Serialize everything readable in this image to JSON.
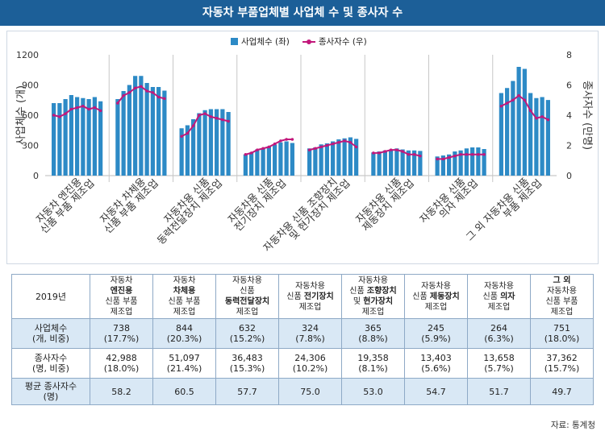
{
  "title": "자동차 부품업체별 사업체 수 및 종사자 수",
  "colors": {
    "bar": "#2d8ac6",
    "line": "#c2187b",
    "title_bg": "#1c5f98",
    "row_shade": "#d9e8f5"
  },
  "chart_data": {
    "type": "bar+line",
    "legend": [
      "사업체수 (좌)",
      "종사자수 (우)"
    ],
    "legend_position": "top",
    "y_left": {
      "label": "사업체수 (개)",
      "ticks": [
        "0",
        "300",
        "600",
        "900",
        "1200"
      ],
      "range": [
        0,
        1200
      ]
    },
    "y_right": {
      "label": "종사자수 (만명)",
      "ticks": [
        "0",
        "2",
        "4",
        "6",
        "8"
      ],
      "range": [
        0,
        8
      ]
    },
    "groups": [
      {
        "label_lines": [
          "자동차 엔진용",
          "신품 부품 제조업"
        ],
        "bars": [
          720,
          720,
          760,
          800,
          780,
          770,
          760,
          780,
          738
        ],
        "line": [
          4.0,
          3.9,
          4.1,
          4.4,
          4.5,
          4.6,
          4.4,
          4.5,
          4.3
        ]
      },
      {
        "label_lines": [
          "자동차 차체용",
          "신품 부품 제조업"
        ],
        "bars": [
          760,
          840,
          900,
          990,
          990,
          920,
          880,
          880,
          844
        ],
        "line": [
          4.8,
          5.3,
          5.5,
          5.8,
          5.9,
          5.6,
          5.5,
          5.2,
          5.1
        ]
      },
      {
        "label_lines": [
          "자동차용 신품",
          "동력전달장치 제조업"
        ],
        "bars": [
          470,
          500,
          560,
          620,
          650,
          660,
          660,
          660,
          632
        ],
        "line": [
          2.6,
          2.8,
          3.3,
          4.0,
          4.1,
          3.9,
          3.8,
          3.7,
          3.6
        ]
      },
      {
        "label_lines": [
          "자동차용 신품",
          "전기장치 제조업"
        ],
        "bars": [
          210,
          230,
          260,
          270,
          290,
          310,
          330,
          340,
          324
        ],
        "line": [
          1.4,
          1.5,
          1.7,
          1.8,
          1.9,
          2.1,
          2.3,
          2.4,
          2.4
        ]
      },
      {
        "label_lines": [
          "자동차용 신품 조향장치",
          "및 현가장치 제조업"
        ],
        "bars": [
          270,
          280,
          310,
          320,
          340,
          360,
          370,
          380,
          365
        ],
        "line": [
          1.7,
          1.8,
          1.9,
          2.0,
          2.1,
          2.2,
          2.3,
          2.2,
          1.9
        ]
      },
      {
        "label_lines": [
          "자동차용 신품",
          "제동장치 제조업"
        ],
        "bars": [
          230,
          240,
          250,
          260,
          270,
          260,
          250,
          250,
          245
        ],
        "line": [
          1.5,
          1.5,
          1.6,
          1.7,
          1.7,
          1.6,
          1.4,
          1.4,
          1.3
        ]
      },
      {
        "label_lines": [
          "자동차용 신품",
          "의자 제조업"
        ],
        "bars": [
          190,
          200,
          210,
          240,
          250,
          270,
          280,
          280,
          264
        ],
        "line": [
          1.1,
          1.1,
          1.2,
          1.3,
          1.4,
          1.4,
          1.4,
          1.4,
          1.4
        ]
      },
      {
        "label_lines": [
          "그 외 자동차용 신품",
          "부품 제조업"
        ],
        "bars": [
          820,
          870,
          940,
          1080,
          1060,
          820,
          770,
          780,
          751
        ],
        "line": [
          4.6,
          4.8,
          5.0,
          5.3,
          5.0,
          4.3,
          3.8,
          3.9,
          3.7
        ]
      }
    ]
  },
  "table": {
    "corner": "2019년",
    "columns": [
      {
        "l1": "자동차",
        "l2": "엔진용",
        "l3": "신품 부품",
        "l4": "제조업",
        "bold": "l2"
      },
      {
        "l1": "자동차",
        "l2": "차체용",
        "l3": "신품 부품",
        "l4": "제조업",
        "bold": "l2"
      },
      {
        "l1": "자동차용",
        "l2": "신품",
        "l3": "동력전달장치",
        "l4": "제조업",
        "bold": "l3"
      },
      {
        "l1": "자동차용",
        "l2": "신품 전기장치",
        "l3": "제조업",
        "l4": "",
        "bold": ""
      },
      {
        "l1": "자동차용",
        "l2": "신품 조향장치",
        "l3": "및 현가장치",
        "l4": "제조업",
        "bold": ""
      },
      {
        "l1": "자동차용",
        "l2": "신품 제동장치",
        "l3": "제조업",
        "l4": "",
        "bold": ""
      },
      {
        "l1": "자동차용",
        "l2": "신품 의자",
        "l3": "제조업",
        "l4": "",
        "bold": ""
      },
      {
        "l1": "그 외",
        "l2": "자동차용",
        "l3": "신품 부품",
        "l4": "제조업",
        "bold": "l1"
      }
    ],
    "rows": [
      {
        "h1": "사업체수",
        "h2": "(개, 비중)",
        "cells": [
          [
            "738",
            "(17.7%)"
          ],
          [
            "844",
            "(20.3%)"
          ],
          [
            "632",
            "(15.2%)"
          ],
          [
            "324",
            "(7.8%)"
          ],
          [
            "365",
            "(8.8%)"
          ],
          [
            "245",
            "(5.9%)"
          ],
          [
            "264",
            "(6.3%)"
          ],
          [
            "751",
            "(18.0%)"
          ]
        ]
      },
      {
        "h1": "종사자수",
        "h2": "(명, 비중)",
        "cells": [
          [
            "42,988",
            "(18.0%)"
          ],
          [
            "51,097",
            "(21.4%)"
          ],
          [
            "36,483",
            "(15.3%)"
          ],
          [
            "24,306",
            "(10.2%)"
          ],
          [
            "19,358",
            "(8.1%)"
          ],
          [
            "13,403",
            "(5.6%)"
          ],
          [
            "13,658",
            "(5.7%)"
          ],
          [
            "37,362",
            "(15.7%)"
          ]
        ]
      },
      {
        "h1": "평균 종사자수",
        "h2": "(명)",
        "cells": [
          [
            "58.2",
            ""
          ],
          [
            "60.5",
            ""
          ],
          [
            "57.7",
            ""
          ],
          [
            "75.0",
            ""
          ],
          [
            "53.0",
            ""
          ],
          [
            "54.7",
            ""
          ],
          [
            "51.7",
            ""
          ],
          [
            "49.7",
            ""
          ]
        ]
      }
    ]
  },
  "source": "자료: 통계청"
}
